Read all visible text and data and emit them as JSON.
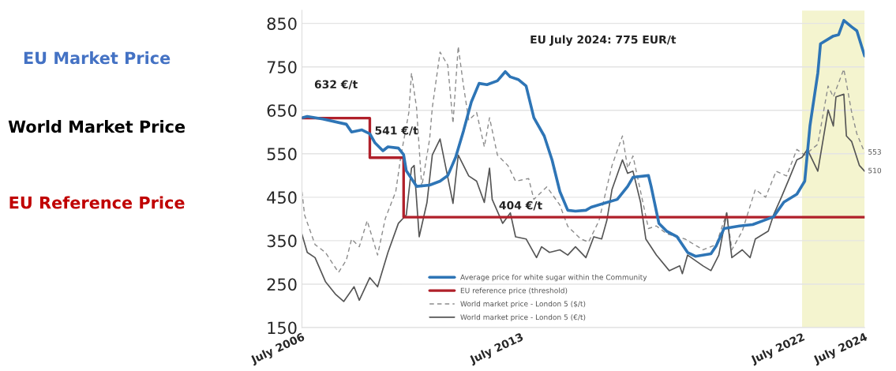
{
  "chart_data": {
    "type": "line",
    "xlim": [
      "2006-07",
      "2024-07"
    ],
    "xticks": [
      {
        "value": "2006-07",
        "label": "July 2006"
      },
      {
        "value": "2013-07",
        "label": "July 2013"
      },
      {
        "value": "2022-07",
        "label": "July 2022"
      },
      {
        "value": "2024-07",
        "label": "July 2024"
      }
    ],
    "ylim": [
      150,
      880
    ],
    "yticks": [
      150,
      250,
      350,
      450,
      550,
      650,
      750,
      850
    ],
    "grid": "y",
    "legend": "bottom",
    "bands": [
      {
        "axis": "x",
        "from": "2022-07",
        "to": "2024-07",
        "color": "#f4f4cf"
      }
    ],
    "series": [
      {
        "name": "Average price for white sugar within the Community",
        "color": "#2e75b6",
        "line_style": "solid",
        "x": [
          "2006-07",
          "2006-09",
          "2007-03",
          "2007-12",
          "2008-02",
          "2008-06",
          "2008-09",
          "2008-11",
          "2009-02",
          "2009-04",
          "2009-08",
          "2009-10",
          "2009-11",
          "2010-01",
          "2010-03",
          "2010-08",
          "2010-12",
          "2011-03",
          "2011-06",
          "2011-09",
          "2011-12",
          "2012-03",
          "2012-06",
          "2012-10",
          "2013-01",
          "2013-03",
          "2013-06",
          "2013-09",
          "2013-12",
          "2014-04",
          "2014-07",
          "2014-10",
          "2015-01",
          "2015-04",
          "2015-08",
          "2015-10",
          "2016-03",
          "2016-08",
          "2016-12",
          "2017-02",
          "2017-08",
          "2017-09",
          "2017-12",
          "2018-03",
          "2018-07",
          "2018-11",
          "2019-02",
          "2019-08",
          "2019-10",
          "2020-01",
          "2020-07",
          "2020-12",
          "2021-04",
          "2021-08",
          "2021-12",
          "2022-05",
          "2022-08",
          "2022-10",
          "2023-01",
          "2023-02",
          "2023-07",
          "2023-09",
          "2023-11",
          "2024-02",
          "2024-04",
          "2024-07"
        ],
        "values": [
          633,
          636,
          630,
          618,
          600,
          605,
          596,
          575,
          557,
          566,
          563,
          548,
          511,
          493,
          475,
          478,
          487,
          500,
          542,
          603,
          669,
          712,
          709,
          718,
          739,
          727,
          721,
          706,
          633,
          591,
          536,
          463,
          420,
          418,
          420,
          427,
          436,
          445,
          475,
          496,
          500,
          475,
          390,
          372,
          359,
          323,
          314,
          320,
          338,
          378,
          384,
          387,
          396,
          405,
          439,
          457,
          487,
          614,
          736,
          803,
          821,
          824,
          857,
          842,
          833,
          775
        ]
      },
      {
        "name": "EU reference price (threshold)",
        "color": "#b0202a",
        "type": "step",
        "line_style": "solid",
        "x": [
          "2006-07",
          "2008-09",
          "2009-10",
          "2024-07"
        ],
        "values": [
          632,
          541,
          404,
          404
        ]
      },
      {
        "name": "World market price - London 5 ($/t)",
        "color": "#8c8c8c",
        "line_style": "dashed",
        "x": [
          "2006-07",
          "2006-08",
          "2006-12",
          "2007-04",
          "2007-09",
          "2007-12",
          "2008-02",
          "2008-05",
          "2008-08",
          "2008-12",
          "2009-03",
          "2009-07",
          "2009-09",
          "2009-12",
          "2010-01",
          "2010-03",
          "2010-05",
          "2010-08",
          "2010-09",
          "2010-12",
          "2011-03",
          "2011-05",
          "2011-07",
          "2011-09",
          "2011-11",
          "2012-02",
          "2012-05",
          "2012-07",
          "2012-10",
          "2013-02",
          "2013-05",
          "2013-10",
          "2013-12",
          "2014-05",
          "2014-10",
          "2015-01",
          "2015-06",
          "2015-09",
          "2016-01",
          "2016-06",
          "2016-10",
          "2016-12",
          "2017-02",
          "2017-05",
          "2017-08",
          "2017-11",
          "2018-03",
          "2018-10",
          "2019-05",
          "2019-10",
          "2020-02",
          "2020-04",
          "2020-08",
          "2021-01",
          "2021-05",
          "2021-09",
          "2022-01",
          "2022-05",
          "2022-08",
          "2023-01",
          "2023-05",
          "2023-07",
          "2023-11",
          "2024-02",
          "2024-04",
          "2024-07"
        ],
        "values": [
          463,
          409,
          341,
          323,
          277,
          305,
          354,
          336,
          396,
          317,
          401,
          463,
          547,
          645,
          736,
          656,
          474,
          584,
          656,
          784,
          754,
          620,
          797,
          706,
          627,
          645,
          566,
          633,
          547,
          523,
          487,
          493,
          445,
          474,
          432,
          383,
          354,
          347,
          396,
          523,
          591,
          517,
          545,
          463,
          378,
          384,
          366,
          354,
          329,
          341,
          414,
          329,
          372,
          468,
          450,
          510,
          499,
          560,
          547,
          572,
          706,
          681,
          745,
          645,
          596,
          553
        ]
      },
      {
        "name": "World market price - London 5 (€/t)",
        "color": "#555555",
        "line_style": "solid",
        "x": [
          "2006-07",
          "2006-09",
          "2006-12",
          "2007-04",
          "2007-08",
          "2007-11",
          "2008-03",
          "2008-05",
          "2008-09",
          "2008-12",
          "2009-04",
          "2009-08",
          "2009-11",
          "2010-01",
          "2010-02",
          "2010-04",
          "2010-07",
          "2010-09",
          "2010-12",
          "2011-05",
          "2011-07",
          "2011-11",
          "2012-02",
          "2012-05",
          "2012-07",
          "2012-08",
          "2012-12",
          "2013-03",
          "2013-05",
          "2013-09",
          "2014-01",
          "2014-03",
          "2014-06",
          "2014-10",
          "2015-01",
          "2015-04",
          "2015-08",
          "2015-11",
          "2016-02",
          "2016-04",
          "2016-06",
          "2016-10",
          "2016-12",
          "2017-02",
          "2017-05",
          "2017-07",
          "2017-11",
          "2018-04",
          "2018-08",
          "2018-09",
          "2018-11",
          "2019-05",
          "2019-08",
          "2019-11",
          "2020-02",
          "2020-04",
          "2020-08",
          "2020-11",
          "2021-01",
          "2021-06",
          "2021-08",
          "2021-11",
          "2022-02",
          "2022-05",
          "2022-07",
          "2022-09",
          "2023-01",
          "2023-05",
          "2023-07",
          "2023-08",
          "2023-11",
          "2023-12",
          "2024-02",
          "2024-05",
          "2024-07"
        ],
        "values": [
          365,
          323,
          311,
          256,
          226,
          210,
          244,
          213,
          265,
          244,
          323,
          390,
          409,
          517,
          523,
          359,
          438,
          547,
          584,
          436,
          547,
          499,
          487,
          438,
          517,
          445,
          390,
          414,
          359,
          354,
          311,
          336,
          323,
          329,
          317,
          336,
          311,
          359,
          354,
          396,
          468,
          536,
          505,
          510,
          438,
          354,
          317,
          281,
          292,
          274,
          317,
          292,
          281,
          317,
          414,
          311,
          329,
          311,
          354,
          372,
          409,
          450,
          493,
          536,
          542,
          560,
          510,
          651,
          614,
          681,
          687,
          591,
          578,
          523,
          510
        ]
      }
    ],
    "annotations": [
      "EU Market Price",
      "World Market Price",
      "EU Reference Price",
      {
        "text": "632 €/t",
        "x": "2007-06",
        "y": 632
      },
      {
        "text": "541 €/t",
        "x": "2008-10",
        "y": 541
      },
      {
        "text": "404 €/t",
        "x": "2013-07",
        "y": 404
      },
      "EU July 2024: 775 EUR/t",
      {
        "text": "553",
        "x": "2024-07",
        "y": 553
      },
      {
        "text": "510",
        "x": "2024-07",
        "y": 510
      }
    ]
  }
}
